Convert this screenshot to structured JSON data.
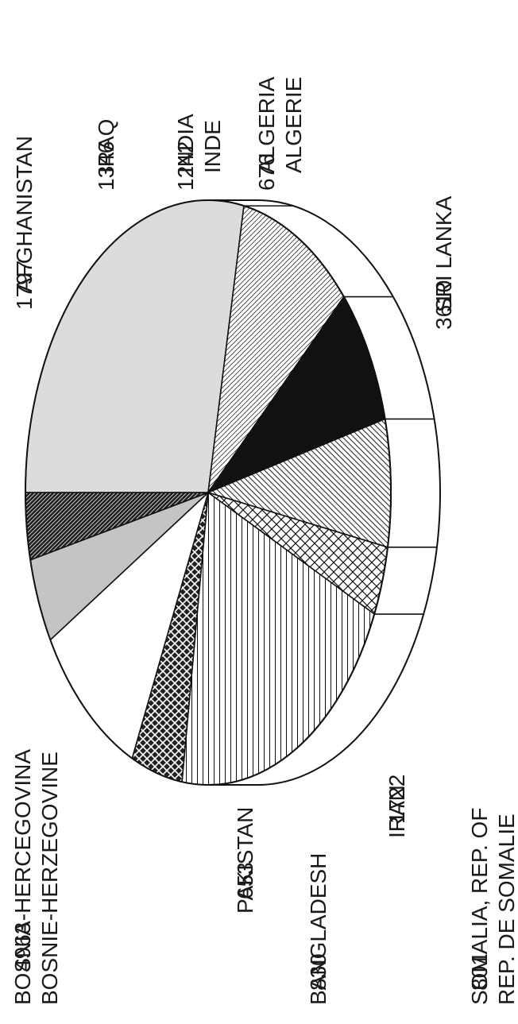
{
  "chart_data": {
    "type": "pie",
    "style": "3d-tilted-pie, rotated 90 degrees counter-clockwise",
    "slices": [
      {
        "lines": [
          "BOSNIA-HERCEGOVINA",
          "BOSNIE-HERZEGOVINE"
        ],
        "value": 4963,
        "value_label": "4963",
        "fill": "light-gray"
      },
      {
        "lines": [
          "AFGHANISTAN"
        ],
        "value": 1797,
        "value_label": "1797",
        "fill": "fine-diagonal-hatch"
      },
      {
        "lines": [
          "IRAQ"
        ],
        "value": 1346,
        "value_label": "1346",
        "fill": "solid-black"
      },
      {
        "lines": [
          "INDIA",
          "INDE"
        ],
        "value": 1242,
        "value_label": "1242",
        "fill": "diagonal-hatch"
      },
      {
        "lines": [
          "ALGERIA",
          "ALGERIE"
        ],
        "value": 676,
        "value_label": "676",
        "fill": "crosshatch"
      },
      {
        "lines": [
          "SRI LANKA"
        ],
        "value": 3610,
        "value_label": "3610",
        "fill": "vertical-lines"
      },
      {
        "lines": [
          "SOMALIA, REP. OF",
          "REP. DE SOMALIE"
        ],
        "value": 801,
        "value_label": "801",
        "fill": "dark-crosshatch"
      },
      {
        "lines": [
          "IRAN"
        ],
        "value": 1722,
        "value_label": "1722",
        "fill": "white"
      },
      {
        "lines": [
          "BANGLADESH"
        ],
        "value": 830,
        "value_label": "830",
        "fill": "gray"
      },
      {
        "lines": [
          "PAKISTAN"
        ],
        "value": 653,
        "value_label": "653",
        "fill": "dark-diagonal-hatch"
      }
    ]
  }
}
